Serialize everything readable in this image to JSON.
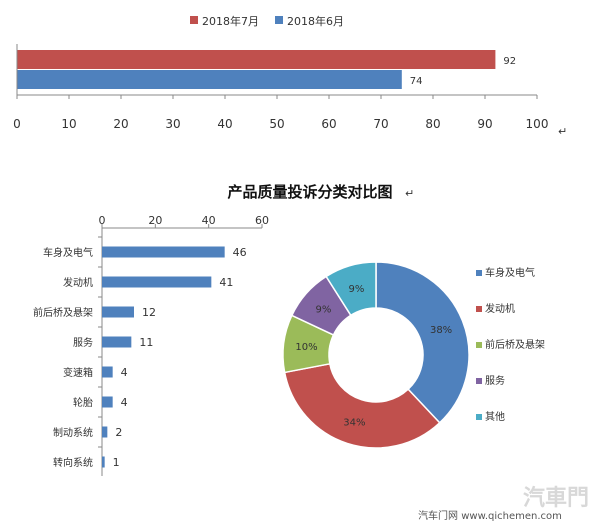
{
  "chart_data": [
    {
      "type": "bar",
      "orientation": "horizontal",
      "series": [
        {
          "name": "2018年7月",
          "values": [
            92
          ],
          "color": "#C0504D"
        },
        {
          "name": "2018年6月",
          "values": [
            74
          ],
          "color": "#4F81BD"
        }
      ],
      "xlim": [
        0,
        100
      ],
      "xticks": [
        "0",
        "10",
        "20",
        "30",
        "40",
        "50",
        "60",
        "70",
        "80",
        "90",
        "100"
      ],
      "legend_position": "top",
      "grid": false
    },
    {
      "type": "bar",
      "orientation": "horizontal",
      "title": "产品质量投诉分类对比图",
      "categories": [
        "车身及电气",
        "发动机",
        "前后桥及悬架",
        "服务",
        "变速箱",
        "轮胎",
        "制动系统",
        "转向系统"
      ],
      "values": [
        46,
        41,
        12,
        11,
        4,
        4,
        2,
        1
      ],
      "xlim": [
        0,
        60
      ],
      "xticks": [
        "0",
        "20",
        "40",
        "60"
      ],
      "color": "#4F81BD",
      "grid": false
    },
    {
      "type": "pie",
      "style": "donut",
      "labels": [
        "车身及电气",
        "发动机",
        "前后桥及悬架",
        "服务",
        "其他"
      ],
      "values": [
        38,
        34,
        10,
        9,
        9
      ],
      "value_labels": [
        "38%",
        "34%",
        "10%",
        "9%",
        "9%"
      ],
      "colors": [
        "#4F81BD",
        "#C0504D",
        "#9BBB59",
        "#8064A2",
        "#4BACC6"
      ],
      "legend_position": "right"
    }
  ],
  "watermark": {
    "site": "汽车门网 www.qichemen.com",
    "logo_text": "汽車門"
  },
  "marks": {
    "return_symbol": "↵"
  }
}
